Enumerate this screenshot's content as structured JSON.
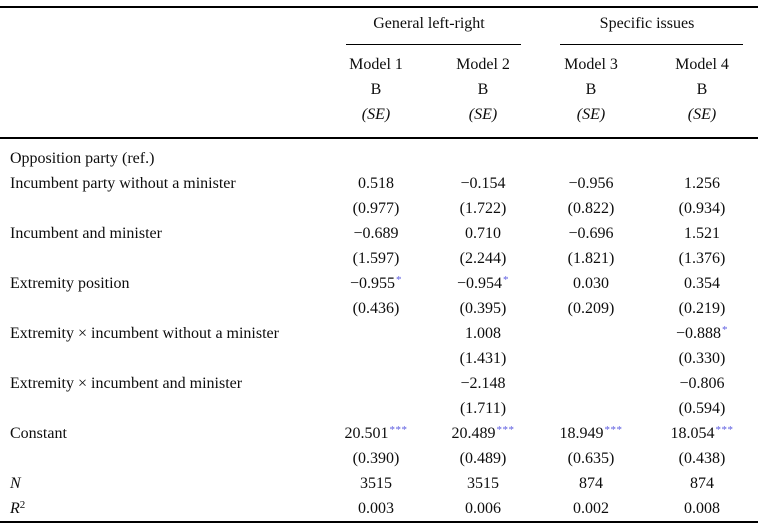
{
  "table": {
    "col_groups": [
      {
        "label": "General left-right"
      },
      {
        "label": "Specific issues"
      }
    ],
    "models": [
      {
        "name": "Model 1",
        "coef_label": "B",
        "se_label": "(SE)"
      },
      {
        "name": "Model 2",
        "coef_label": "B",
        "se_label": "(SE)"
      },
      {
        "name": "Model 3",
        "coef_label": "B",
        "se_label": "(SE)"
      },
      {
        "name": "Model 4",
        "coef_label": "B",
        "se_label": "(SE)"
      }
    ],
    "rows": [
      {
        "label": "Opposition party (ref.)"
      },
      {
        "label": "Incumbent party without a minister",
        "b": [
          "0.518",
          "−0.154",
          "−0.956",
          "1.256"
        ],
        "se": [
          "(0.977)",
          "(1.722)",
          "(0.822)",
          "(0.934)"
        ]
      },
      {
        "label": "Incumbent and minister",
        "b": [
          "−0.689",
          "0.710",
          "−0.696",
          "1.521"
        ],
        "se": [
          "(1.597)",
          "(2.244)",
          "(1.821)",
          "(1.376)"
        ]
      },
      {
        "label": "Extremity position",
        "b": [
          "−0.955*",
          "−0.954*",
          "0.030",
          "0.354"
        ],
        "se": [
          "(0.436)",
          "(0.395)",
          "(0.209)",
          "(0.219)"
        ]
      },
      {
        "label": "Extremity × incumbent without a minister",
        "b": [
          "",
          "1.008",
          "",
          "−0.888*"
        ],
        "se": [
          "",
          "(1.431)",
          "",
          "(0.330)"
        ]
      },
      {
        "label": "Extremity × incumbent and minister",
        "b": [
          "",
          "−2.148",
          "",
          "−0.806"
        ],
        "se": [
          "",
          "(1.711)",
          "",
          "(0.594)"
        ]
      },
      {
        "label": "Constant",
        "b": [
          "20.501***",
          "20.489***",
          "18.949***",
          "18.054***"
        ],
        "se": [
          "(0.390)",
          "(0.489)",
          "(0.635)",
          "(0.438)"
        ]
      },
      {
        "label": "N",
        "italic": true,
        "b": [
          "3515",
          "3515",
          "874",
          "874"
        ]
      },
      {
        "label": "R",
        "label_sup": "2",
        "italic": true,
        "b": [
          "0.003",
          "0.006",
          "0.002",
          "0.008"
        ]
      }
    ]
  },
  "colors": {
    "significance_star": "#5b5be0",
    "text": "#0d0d0d",
    "rule": "#000000"
  }
}
